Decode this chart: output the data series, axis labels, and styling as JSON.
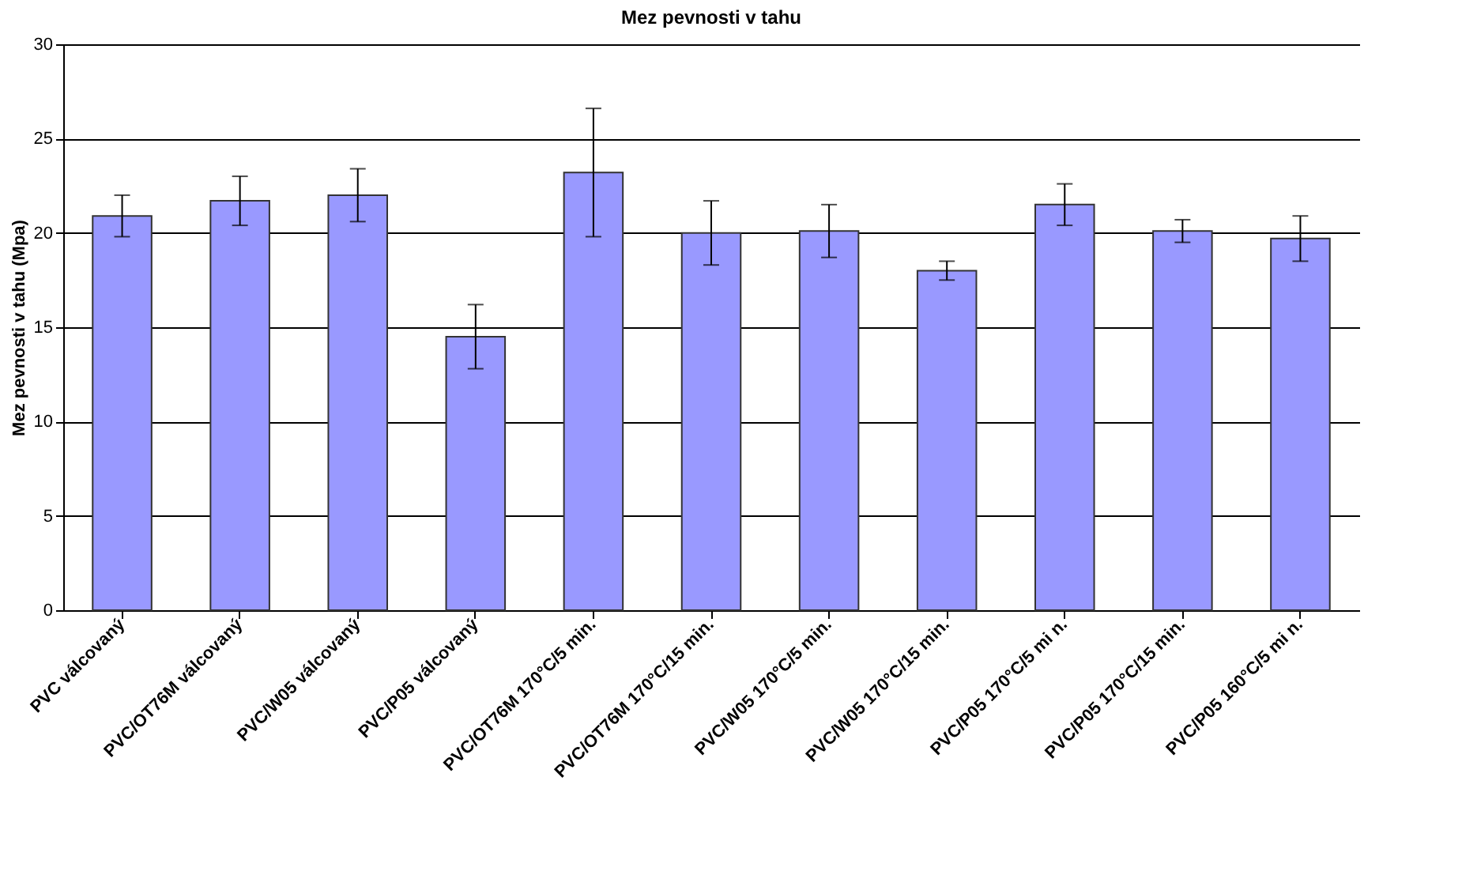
{
  "chart_data": {
    "type": "bar",
    "title": "Mez pevnosti v tahu",
    "ylabel": "Mez pevnosti v tahu (Mpa)",
    "categories": [
      "PVC válcovaný",
      "PVC/OT76M válcovaný",
      "PVC/W05 válcovaný",
      "PVC/P05 válcovaný",
      "PVC/OT76M  170°C/5 min.",
      "PVC/OT76M  170°C/15 min.",
      "PVC/W05 170°C/5 min.",
      "PVC/W05 170°C/15 min.",
      "PVC/P05 170°C/5 mi n.",
      "PVC/P05 170°C/15  min.",
      "PVC/P05 160°C/5 mi n."
    ],
    "values": [
      20.9,
      21.7,
      22.0,
      14.5,
      23.2,
      20.0,
      20.1,
      18.0,
      21.5,
      20.1,
      19.7
    ],
    "errors": [
      1.1,
      1.3,
      1.4,
      1.7,
      3.4,
      1.7,
      1.4,
      0.5,
      1.1,
      0.6,
      1.2
    ],
    "color": "#9999ff",
    "ylim": [
      0,
      30
    ],
    "yticks": [
      0,
      5,
      10,
      15,
      20,
      25,
      30
    ],
    "grid": "y"
  }
}
